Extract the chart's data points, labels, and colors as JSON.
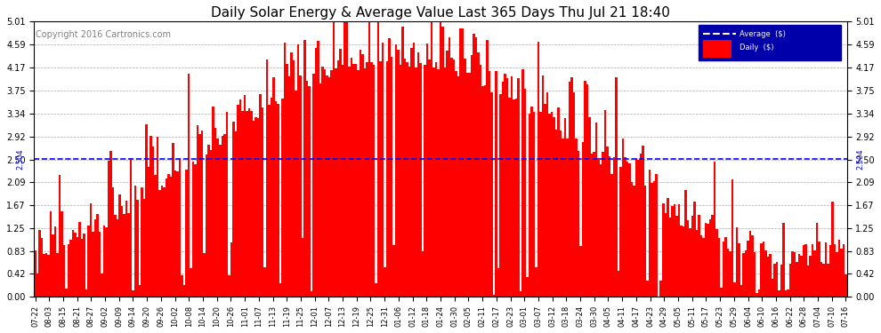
{
  "title": "Daily Solar Energy & Average Value Last 365 Days Thu Jul 21 18:40",
  "copyright": "Copyright 2016 Cartronics.com",
  "average_value": 2.504,
  "average_label": "2.504",
  "bar_color": "#ff0000",
  "average_line_color": "#0000ff",
  "background_color": "#ffffff",
  "grid_color": "#aaaaaa",
  "ylim": [
    0,
    5.01
  ],
  "yticks": [
    0.0,
    0.42,
    0.83,
    1.25,
    1.67,
    2.09,
    2.5,
    2.92,
    3.34,
    3.75,
    4.17,
    4.59,
    5.01
  ],
  "legend_bg_color": "#0000aa",
  "xtick_labels": [
    "07-22",
    "08-03",
    "08-15",
    "08-21",
    "08-27",
    "09-02",
    "09-09",
    "09-14",
    "09-20",
    "09-26",
    "10-02",
    "10-08",
    "10-14",
    "10-20",
    "10-26",
    "11-01",
    "11-07",
    "11-13",
    "11-19",
    "11-25",
    "12-01",
    "12-07",
    "12-13",
    "12-19",
    "12-25",
    "12-31",
    "01-06",
    "01-12",
    "01-18",
    "01-24",
    "01-30",
    "02-05",
    "02-11",
    "02-17",
    "02-23",
    "03-01",
    "03-07",
    "03-12",
    "03-18",
    "03-24",
    "03-30",
    "04-05",
    "04-11",
    "04-17",
    "04-23",
    "04-29",
    "05-05",
    "05-11",
    "05-17",
    "05-23",
    "05-29",
    "06-04",
    "06-10",
    "06-16",
    "06-22",
    "06-28",
    "07-04",
    "07-10",
    "07-16"
  ],
  "num_bars": 365
}
